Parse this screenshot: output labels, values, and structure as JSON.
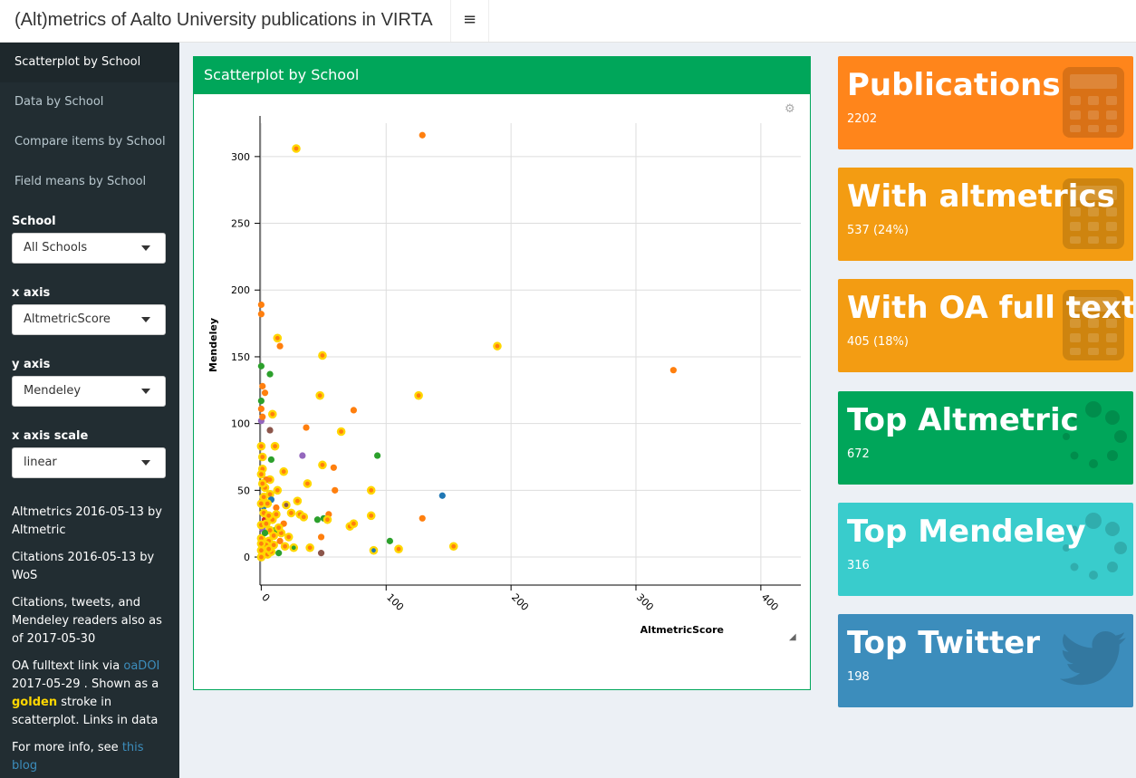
{
  "header": {
    "title": "(Alt)metrics of Aalto University publications in VIRTA",
    "toggle_icon": "≡"
  },
  "sidebar": {
    "nav": [
      {
        "label": "Scatterplot by School",
        "active": true
      },
      {
        "label": "Data by School"
      },
      {
        "label": "Compare items by School"
      },
      {
        "label": "Field means by School"
      }
    ],
    "controls": [
      {
        "label": "School",
        "value": "All Schools"
      },
      {
        "label": "x axis",
        "value": "AltmetricScore"
      },
      {
        "label": "y axis",
        "value": "Mendeley"
      },
      {
        "label": "x axis scale",
        "value": "linear"
      }
    ],
    "info": {
      "p1": "Altmetrics 2016-05-13 by Altmetric",
      "p2": "Citations 2016-05-13 by WoS",
      "p3": "Citations, tweets, and Mendeley readers also as of 2017-05-30",
      "p4_a": "OA fulltext link via ",
      "p4_link": "oaDOI",
      "p4_b": " 2017-05-29 . Shown as a ",
      "p4_gold": "golden",
      "p4_c": " stroke in scatterplot. Links in data",
      "p5_a": "For more info, see ",
      "p5_link": "this blog"
    }
  },
  "main": {
    "box_title": "Scatterplot by School"
  },
  "value_boxes": [
    {
      "title": "Publications",
      "value": "2202",
      "color": "#ff851b",
      "icon": "calculator-icon"
    },
    {
      "title": "With altmetrics",
      "value": "537 (24%)",
      "color": "#f39c12",
      "icon": "calculator-icon"
    },
    {
      "title": "With OA full text",
      "value": "405 (18%)",
      "color": "#f39c12",
      "icon": "calculator-icon"
    },
    {
      "title": "Top Altmetric",
      "value": "672",
      "color": "#00a65a",
      "icon": "spinner-icon"
    },
    {
      "title": "Top Mendeley",
      "value": "316",
      "color": "#39cccc",
      "icon": "spinner-icon"
    },
    {
      "title": "Top Twitter",
      "value": "198",
      "color": "#3c8dbc",
      "icon": "twitter-icon"
    }
  ],
  "chart_data": {
    "type": "scatter",
    "xlabel": "AltmetricScore",
    "ylabel": "Mendeley",
    "xlim": [
      -1,
      432
    ],
    "ylim": [
      -21,
      325
    ],
    "x_ticks": [
      0,
      100,
      200,
      300,
      400
    ],
    "y_ticks": [
      0,
      50,
      100,
      150,
      200,
      250,
      300
    ],
    "grid": true,
    "oa_stroke_color": "#ffd700",
    "points": [
      {
        "x": 129,
        "y": 316,
        "c": "#ff7f0e",
        "oa": false
      },
      {
        "x": 28,
        "y": 306,
        "c": "#ff7f0e",
        "oa": true
      },
      {
        "x": 330,
        "y": 140,
        "c": "#ff7f0e",
        "oa": false
      },
      {
        "x": 189,
        "y": 158,
        "c": "#ff7f0e",
        "oa": true
      },
      {
        "x": 126,
        "y": 121,
        "c": "#ff7f0e",
        "oa": true
      },
      {
        "x": 49,
        "y": 151,
        "c": "#ff7f0e",
        "oa": true
      },
      {
        "x": 13,
        "y": 164,
        "c": "#ff7f0e",
        "oa": true
      },
      {
        "x": 15,
        "y": 158,
        "c": "#ff7f0e",
        "oa": false
      },
      {
        "x": 0,
        "y": 189,
        "c": "#ff7f0e",
        "oa": false
      },
      {
        "x": 0,
        "y": 182,
        "c": "#ff7f0e",
        "oa": false
      },
      {
        "x": 7,
        "y": 137,
        "c": "#2ca02c",
        "oa": false
      },
      {
        "x": 0,
        "y": 143,
        "c": "#2ca02c",
        "oa": false
      },
      {
        "x": 1,
        "y": 128,
        "c": "#ff7f0e",
        "oa": false
      },
      {
        "x": 3,
        "y": 123,
        "c": "#ff7f0e",
        "oa": false
      },
      {
        "x": 47,
        "y": 121,
        "c": "#ff7f0e",
        "oa": true
      },
      {
        "x": 0,
        "y": 117,
        "c": "#2ca02c",
        "oa": false
      },
      {
        "x": 74,
        "y": 110,
        "c": "#ff7f0e",
        "oa": false
      },
      {
        "x": 0,
        "y": 111,
        "c": "#ff7f0e",
        "oa": false
      },
      {
        "x": 9,
        "y": 107,
        "c": "#ff7f0e",
        "oa": true
      },
      {
        "x": 0,
        "y": 102,
        "c": "#9467bd",
        "oa": false
      },
      {
        "x": 1,
        "y": 105,
        "c": "#ff7f0e",
        "oa": false
      },
      {
        "x": 36,
        "y": 97,
        "c": "#ff7f0e",
        "oa": false
      },
      {
        "x": 64,
        "y": 94,
        "c": "#ff7f0e",
        "oa": true
      },
      {
        "x": 7,
        "y": 95,
        "c": "#8c564b",
        "oa": false
      },
      {
        "x": 0,
        "y": 83,
        "c": "#ff7f0e",
        "oa": true
      },
      {
        "x": 11,
        "y": 83,
        "c": "#ff7f0e",
        "oa": true
      },
      {
        "x": 33,
        "y": 76,
        "c": "#9467bd",
        "oa": false
      },
      {
        "x": 93,
        "y": 76,
        "c": "#2ca02c",
        "oa": false
      },
      {
        "x": 8,
        "y": 73,
        "c": "#2ca02c",
        "oa": false
      },
      {
        "x": 49,
        "y": 69,
        "c": "#ff7f0e",
        "oa": true
      },
      {
        "x": 58,
        "y": 67,
        "c": "#ff7f0e",
        "oa": false
      },
      {
        "x": 18,
        "y": 64,
        "c": "#ff7f0e",
        "oa": true
      },
      {
        "x": 7,
        "y": 58,
        "c": "#ff7f0e",
        "oa": true
      },
      {
        "x": 37,
        "y": 55,
        "c": "#ff7f0e",
        "oa": true
      },
      {
        "x": 59,
        "y": 50,
        "c": "#ff7f0e",
        "oa": false
      },
      {
        "x": 88,
        "y": 50,
        "c": "#ff7f0e",
        "oa": true
      },
      {
        "x": 145,
        "y": 46,
        "c": "#1f77b4",
        "oa": false
      },
      {
        "x": 7,
        "y": 47,
        "c": "#ff7f0e",
        "oa": true
      },
      {
        "x": 29,
        "y": 42,
        "c": "#ff7f0e",
        "oa": true
      },
      {
        "x": 20,
        "y": 39,
        "c": "#8c564b",
        "oa": true
      },
      {
        "x": 2,
        "y": 38,
        "c": "#1f77b4",
        "oa": false
      },
      {
        "x": 8,
        "y": 43,
        "c": "#1f77b4",
        "oa": false
      },
      {
        "x": 12,
        "y": 37,
        "c": "#ff7f0e",
        "oa": false
      },
      {
        "x": 24,
        "y": 33,
        "c": "#ff7f0e",
        "oa": true
      },
      {
        "x": 31,
        "y": 32,
        "c": "#ff7f0e",
        "oa": true
      },
      {
        "x": 34,
        "y": 30,
        "c": "#ff7f0e",
        "oa": true
      },
      {
        "x": 45,
        "y": 28,
        "c": "#2ca02c",
        "oa": false
      },
      {
        "x": 50,
        "y": 29,
        "c": "#2ca02c",
        "oa": false
      },
      {
        "x": 54,
        "y": 32,
        "c": "#ff7f0e",
        "oa": false
      },
      {
        "x": 53,
        "y": 28,
        "c": "#ff7f0e",
        "oa": true
      },
      {
        "x": 71,
        "y": 23,
        "c": "#ff7f0e",
        "oa": true
      },
      {
        "x": 74,
        "y": 25,
        "c": "#ff7f0e",
        "oa": true
      },
      {
        "x": 88,
        "y": 31,
        "c": "#ff7f0e",
        "oa": true
      },
      {
        "x": 129,
        "y": 29,
        "c": "#ff7f0e",
        "oa": false
      },
      {
        "x": 48,
        "y": 15,
        "c": "#ff7f0e",
        "oa": false
      },
      {
        "x": 103,
        "y": 12,
        "c": "#2ca02c",
        "oa": false
      },
      {
        "x": 110,
        "y": 6,
        "c": "#ff7f0e",
        "oa": true
      },
      {
        "x": 90,
        "y": 5,
        "c": "#1f77b4",
        "oa": true
      },
      {
        "x": 154,
        "y": 8,
        "c": "#ff7f0e",
        "oa": true
      },
      {
        "x": 39,
        "y": 7,
        "c": "#ff7f0e",
        "oa": true
      },
      {
        "x": 48,
        "y": 3,
        "c": "#8c564b",
        "oa": false
      },
      {
        "x": 26,
        "y": 7,
        "c": "#2ca02c",
        "oa": true
      },
      {
        "x": 11,
        "y": 20,
        "c": "#2ca02c",
        "oa": false
      },
      {
        "x": 14,
        "y": 3,
        "c": "#2ca02c",
        "oa": false
      },
      {
        "x": 2,
        "y": 3,
        "c": "#9467bd",
        "oa": false
      },
      {
        "x": 1,
        "y": 21,
        "c": "#9467bd",
        "oa": false
      },
      {
        "x": 3,
        "y": 28,
        "c": "#d62728",
        "oa": false
      },
      {
        "x": 6,
        "y": 12,
        "c": "#ff7f0e",
        "oa": true
      },
      {
        "x": 9,
        "y": 28,
        "c": "#ff7f0e",
        "oa": true
      },
      {
        "x": 3,
        "y": 52,
        "c": "#ff7f0e",
        "oa": true
      },
      {
        "x": 1,
        "y": 66,
        "c": "#ff7f0e",
        "oa": true
      },
      {
        "x": 4,
        "y": 9,
        "c": "#ff7f0e",
        "oa": true
      },
      {
        "x": 16,
        "y": 18,
        "c": "#ff7f0e",
        "oa": true
      },
      {
        "x": 5,
        "y": 2,
        "c": "#ff7f0e",
        "oa": true
      },
      {
        "x": 0,
        "y": 14,
        "c": "#ff7f0e",
        "oa": true
      },
      {
        "x": 2,
        "y": 33,
        "c": "#ff7f0e",
        "oa": true
      },
      {
        "x": 18,
        "y": 25,
        "c": "#ff7f0e",
        "oa": false
      },
      {
        "x": 10,
        "y": 9,
        "c": "#ff7f0e",
        "oa": true
      },
      {
        "x": 0,
        "y": 5,
        "c": "#ff7f0e",
        "oa": true
      },
      {
        "x": 4,
        "y": 58,
        "c": "#ff7f0e",
        "oa": false
      },
      {
        "x": 13,
        "y": 50,
        "c": "#ff7f0e",
        "oa": true
      },
      {
        "x": 1,
        "y": 75,
        "c": "#ff7f0e",
        "oa": true
      },
      {
        "x": 15,
        "y": 12,
        "c": "#ff7f0e",
        "oa": false
      },
      {
        "x": 22,
        "y": 15,
        "c": "#ff7f0e",
        "oa": true
      },
      {
        "x": 7,
        "y": 20,
        "c": "#ff7f0e",
        "oa": true
      },
      {
        "x": 0,
        "y": 40,
        "c": "#ff7f0e",
        "oa": true
      },
      {
        "x": 6,
        "y": 31,
        "c": "#ff7f0e",
        "oa": true
      },
      {
        "x": 12,
        "y": 32,
        "c": "#ff7f0e",
        "oa": true
      },
      {
        "x": 2,
        "y": 45,
        "c": "#ff7f0e",
        "oa": true
      },
      {
        "x": 0,
        "y": 62,
        "c": "#ff7f0e",
        "oa": true
      },
      {
        "x": 0,
        "y": 24,
        "c": "#ff7f0e",
        "oa": true
      },
      {
        "x": 8,
        "y": 4,
        "c": "#ff7f0e",
        "oa": true
      },
      {
        "x": 3,
        "y": 18,
        "c": "#2ca02c",
        "oa": false
      },
      {
        "x": 0,
        "y": 10,
        "c": "#ff7f0e",
        "oa": true
      },
      {
        "x": 4,
        "y": 25,
        "c": "#ff7f0e",
        "oa": true
      },
      {
        "x": 10,
        "y": 16,
        "c": "#ff7f0e",
        "oa": true
      },
      {
        "x": 19,
        "y": 8,
        "c": "#ff7f0e",
        "oa": true
      },
      {
        "x": 1,
        "y": 55,
        "c": "#ff7f0e",
        "oa": true
      },
      {
        "x": 5,
        "y": 40,
        "c": "#ff7f0e",
        "oa": true
      },
      {
        "x": 14,
        "y": 22,
        "c": "#ff7f0e",
        "oa": true
      },
      {
        "x": 0,
        "y": 0,
        "c": "#ff7f0e",
        "oa": true
      },
      {
        "x": 6,
        "y": 6,
        "c": "#ff7f0e",
        "oa": true
      }
    ]
  }
}
